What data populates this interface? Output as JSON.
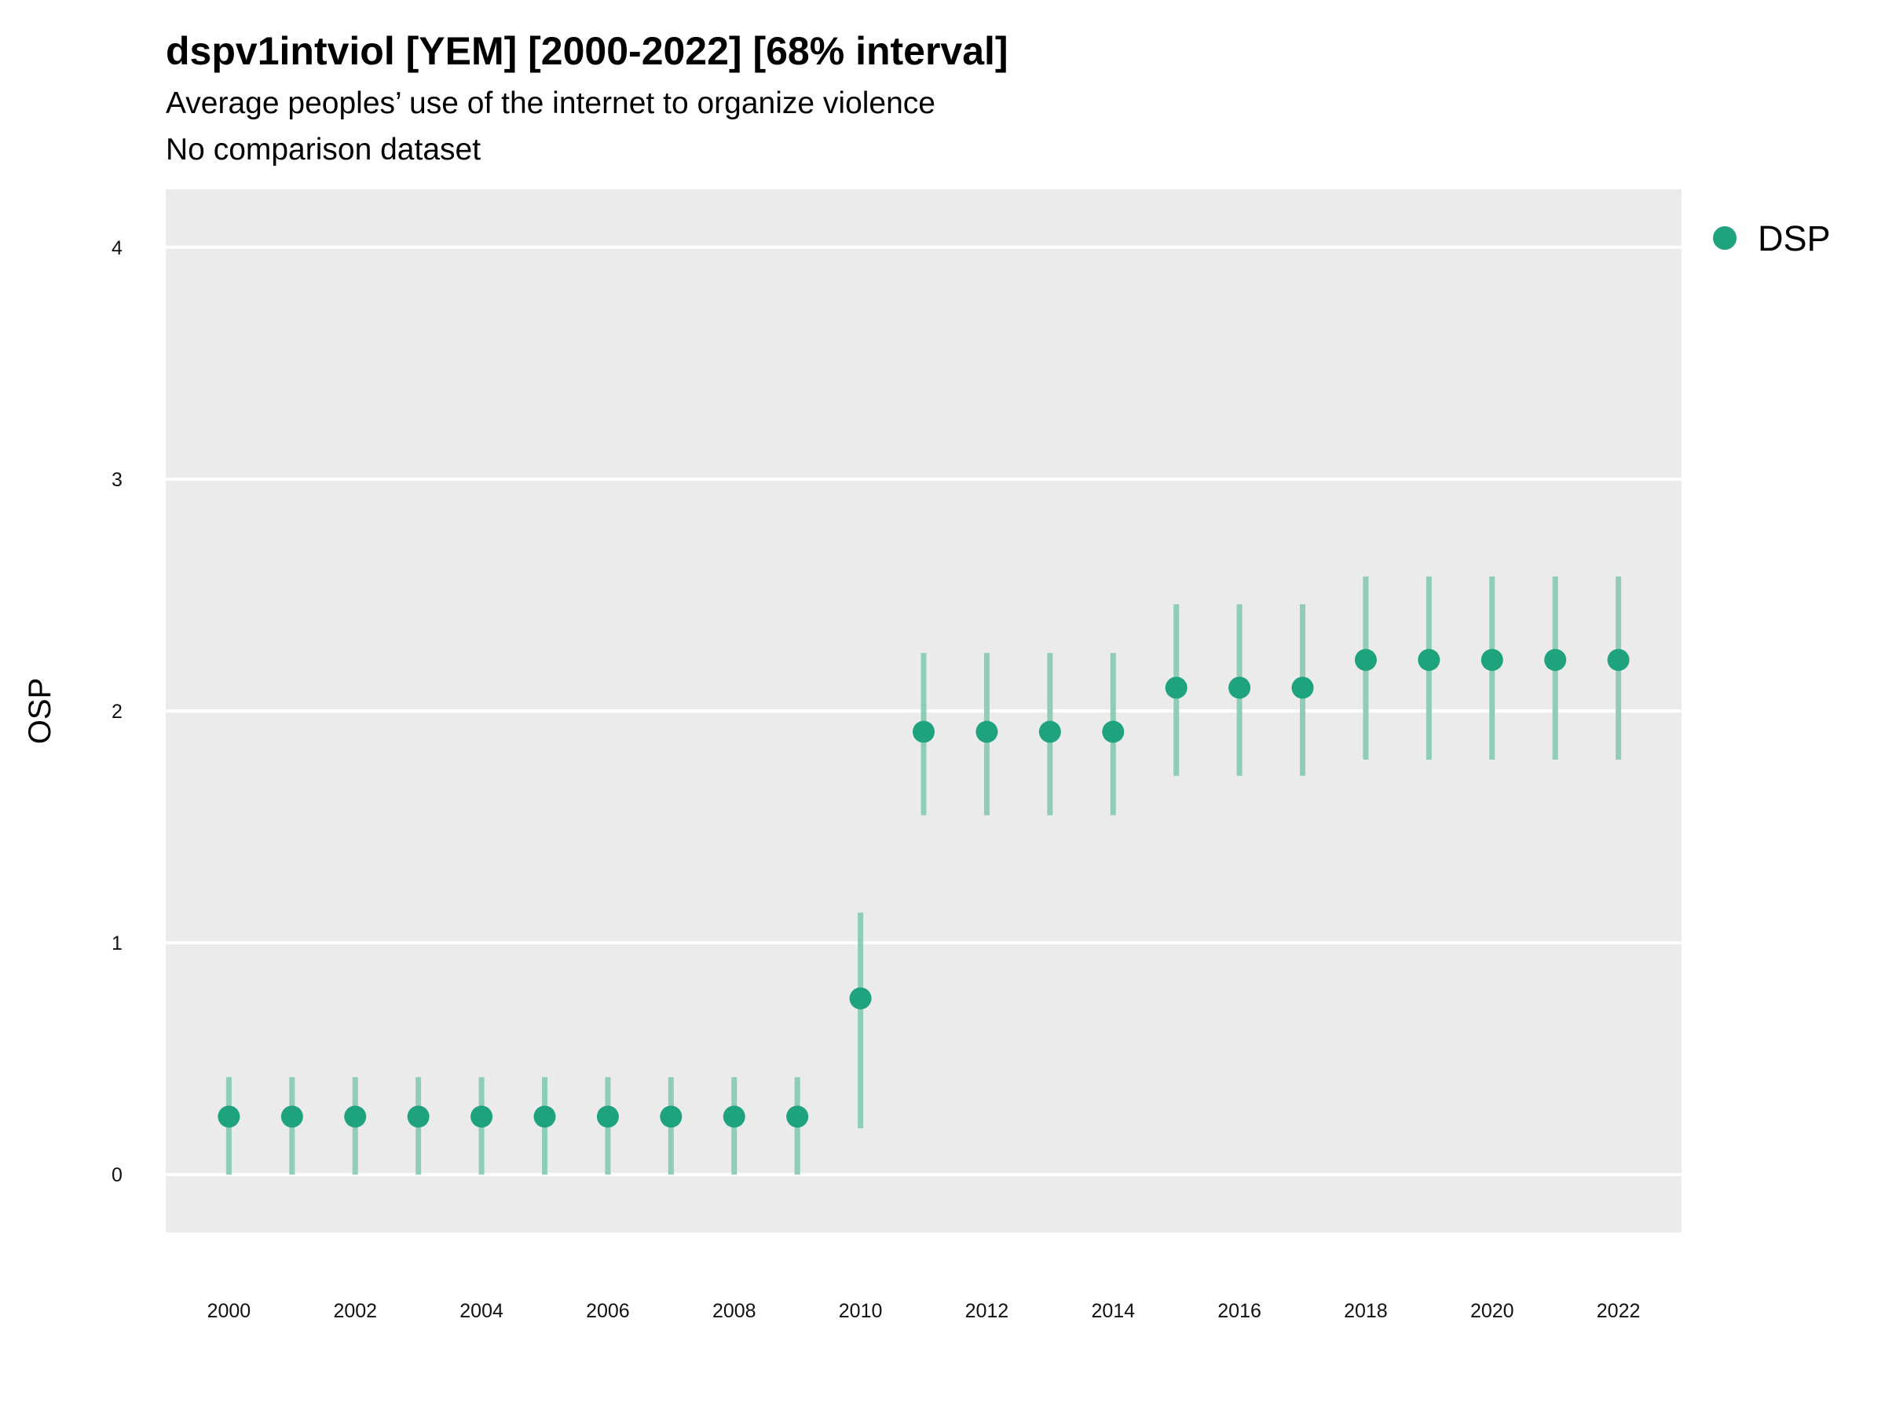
{
  "header": {
    "title": "dspv1intviol [YEM] [2000-2022] [68% interval]",
    "subtitle_1": "Average peoples’ use of the internet to organize violence",
    "subtitle_2": "No comparison dataset"
  },
  "colors": {
    "panel": "#ebebeb",
    "grid": "#ffffff",
    "point": "#1fa37f",
    "interval": "#8fcdb8"
  },
  "chart_data": {
    "type": "scatter",
    "title": "dspv1intviol [YEM] [2000-2022] [68% interval]",
    "xlabel": "",
    "ylabel": "OSP",
    "ylim": [
      -0.25,
      4.25
    ],
    "xlim": [
      1999,
      2023
    ],
    "y_ticks": [
      0,
      1,
      2,
      3,
      4
    ],
    "x_ticks": [
      2000,
      2002,
      2004,
      2006,
      2008,
      2010,
      2012,
      2014,
      2016,
      2018,
      2020,
      2022
    ],
    "grid": true,
    "legend_position": "top-right",
    "series": [
      {
        "name": "DSP",
        "x": [
          2000,
          2001,
          2002,
          2003,
          2004,
          2005,
          2006,
          2007,
          2008,
          2009,
          2010,
          2011,
          2012,
          2013,
          2014,
          2015,
          2016,
          2017,
          2018,
          2019,
          2020,
          2021,
          2022
        ],
        "y": [
          0.25,
          0.25,
          0.25,
          0.25,
          0.25,
          0.25,
          0.25,
          0.25,
          0.25,
          0.25,
          0.76,
          1.91,
          1.91,
          1.91,
          1.91,
          2.1,
          2.1,
          2.1,
          2.22,
          2.22,
          2.22,
          2.22,
          2.22
        ],
        "lower": [
          0,
          0,
          0,
          0,
          0,
          0,
          0,
          0,
          0,
          0,
          0.2,
          1.55,
          1.55,
          1.55,
          1.55,
          1.72,
          1.72,
          1.72,
          1.79,
          1.79,
          1.79,
          1.79,
          1.79
        ],
        "upper": [
          0.42,
          0.42,
          0.42,
          0.42,
          0.42,
          0.42,
          0.42,
          0.42,
          0.42,
          0.42,
          1.13,
          2.25,
          2.25,
          2.25,
          2.25,
          2.46,
          2.46,
          2.46,
          2.58,
          2.58,
          2.58,
          2.58,
          2.58
        ]
      }
    ]
  }
}
